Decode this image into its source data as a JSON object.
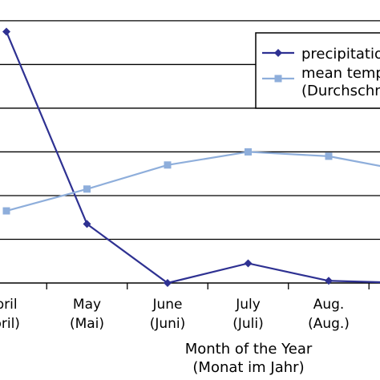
{
  "chart_data": {
    "type": "line",
    "title": "",
    "xlabel": "Month of the Year",
    "xlabel_sub": "(Monat im Jahr)",
    "ylabel": "",
    "categories": [
      {
        "label": "pril",
        "sub": "pril)"
      },
      {
        "label": "May",
        "sub": "(Mai)"
      },
      {
        "label": "June",
        "sub": "(Juni)"
      },
      {
        "label": "July",
        "sub": "(Juli)"
      },
      {
        "label": "Aug.",
        "sub": "(Aug.)"
      },
      {
        "label": "",
        "sub": ""
      }
    ],
    "ylim": [
      0,
      6.2
    ],
    "grid": true,
    "legend_position": "top-right",
    "series": [
      {
        "name": "precipitatio",
        "legend_lines": [
          "precipitatio"
        ],
        "color": "#2e3192",
        "marker": "diamond",
        "values": [
          5.75,
          1.35,
          0.0,
          0.45,
          0.05,
          0.0
        ]
      },
      {
        "name": "mean temp",
        "legend_lines": [
          "mean temp",
          "(Durchschn"
        ],
        "color": "#8eaedb",
        "marker": "square",
        "values": [
          1.65,
          2.15,
          2.7,
          3.0,
          2.9,
          2.55
        ]
      }
    ]
  }
}
